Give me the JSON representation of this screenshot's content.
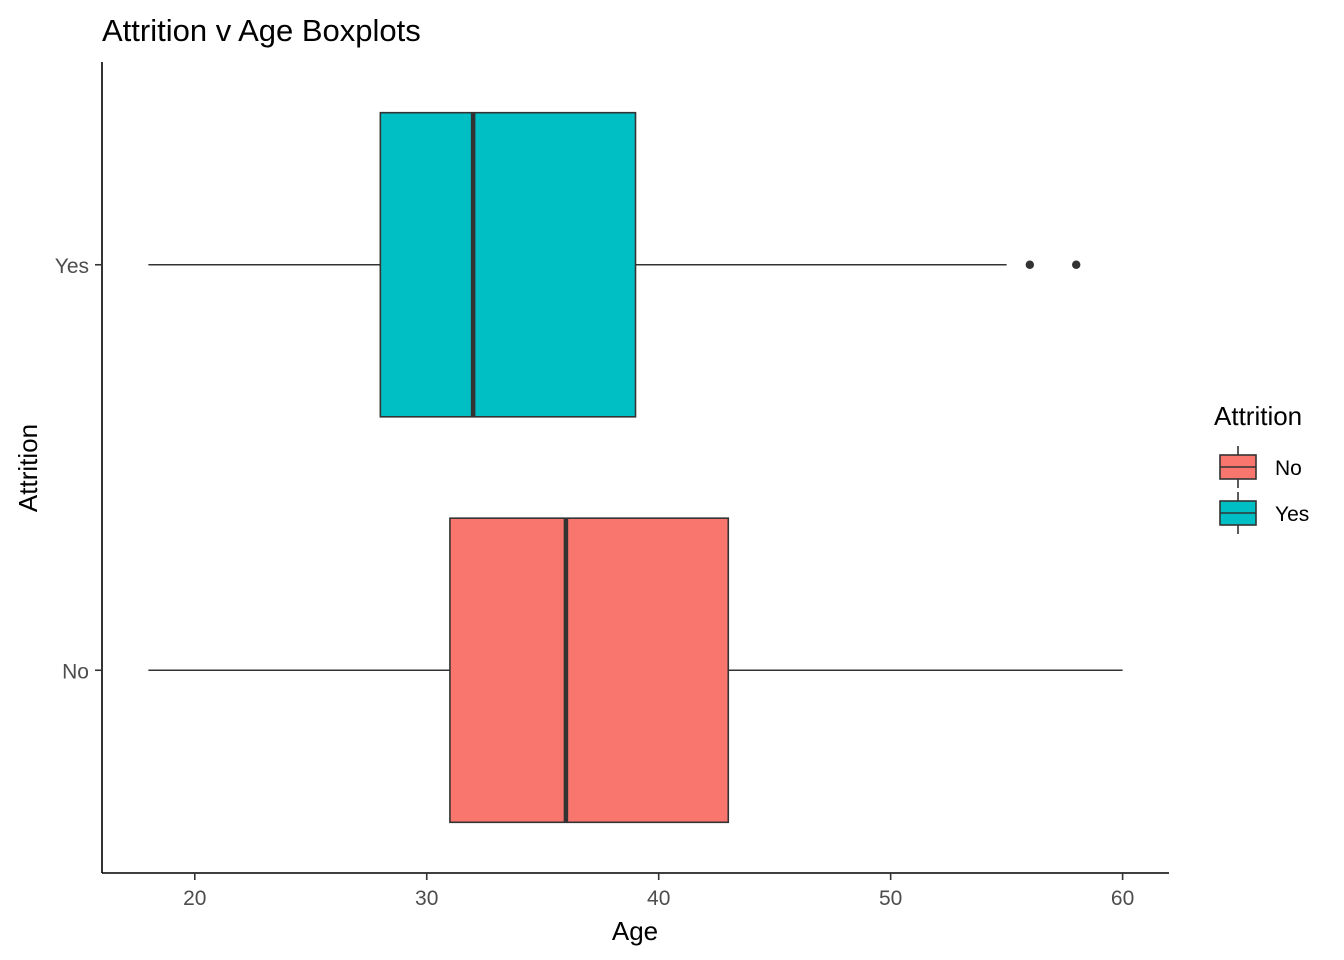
{
  "chart_data": {
    "type": "boxplot",
    "title": "Attrition v Age Boxplots",
    "xlabel": "Age",
    "ylabel": "Attrition",
    "xlim": [
      16,
      62
    ],
    "xticks": [
      20,
      30,
      40,
      50,
      60
    ],
    "categories": [
      "No",
      "Yes"
    ],
    "series": [
      {
        "name": "No",
        "color": "#F8766D",
        "min": 18,
        "q1": 31,
        "median": 36,
        "q3": 43,
        "max": 60,
        "outliers": []
      },
      {
        "name": "Yes",
        "color": "#00BFC4",
        "min": 18,
        "q1": 28,
        "median": 32,
        "q3": 39,
        "max": 55,
        "outliers": [
          56,
          58
        ]
      }
    ],
    "grid": false,
    "legend": {
      "title": "Attrition",
      "position": "right",
      "items": [
        "No",
        "Yes"
      ]
    }
  }
}
